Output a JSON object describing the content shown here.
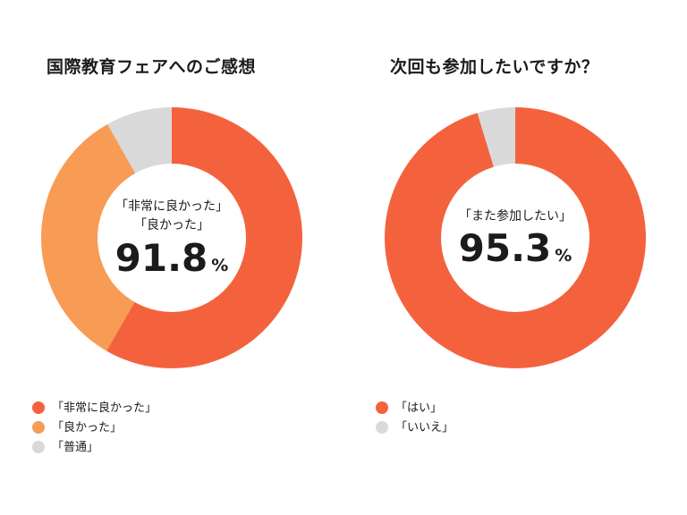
{
  "page": {
    "background": "#ffffff",
    "text_color": "#1b1b1b"
  },
  "chart_data": [
    {
      "type": "pie",
      "style": "donut",
      "title": "国際教育フェアへのご感想",
      "center_label_lines": [
        "「非常に良かった」",
        "「良かった」"
      ],
      "center_value": "91.8",
      "center_unit": "%",
      "segments": [
        {
          "label": "「非常に良かった」",
          "value": 58.3,
          "color": "#F4623D"
        },
        {
          "label": "「良かった」",
          "value": 33.5,
          "color": "#F89B55"
        },
        {
          "label": "「普通」",
          "value": 8.2,
          "color": "#D9D9D9"
        }
      ],
      "legend_position": "bottom-left",
      "rotation_note": "segments start at 12 o'clock and run clockwise"
    },
    {
      "type": "pie",
      "style": "donut",
      "title": "次回も参加したいですか？",
      "center_label_lines": [
        "「また参加したい」"
      ],
      "center_value": "95.3",
      "center_unit": "%",
      "segments": [
        {
          "label": "「はい」",
          "value": 95.3,
          "color": "#F4623D"
        },
        {
          "label": "「いいえ」",
          "value": 4.7,
          "color": "#D9D9D9"
        }
      ],
      "legend_position": "bottom-left",
      "rotation_note": "segments start at 12 o'clock and run clockwise"
    }
  ]
}
